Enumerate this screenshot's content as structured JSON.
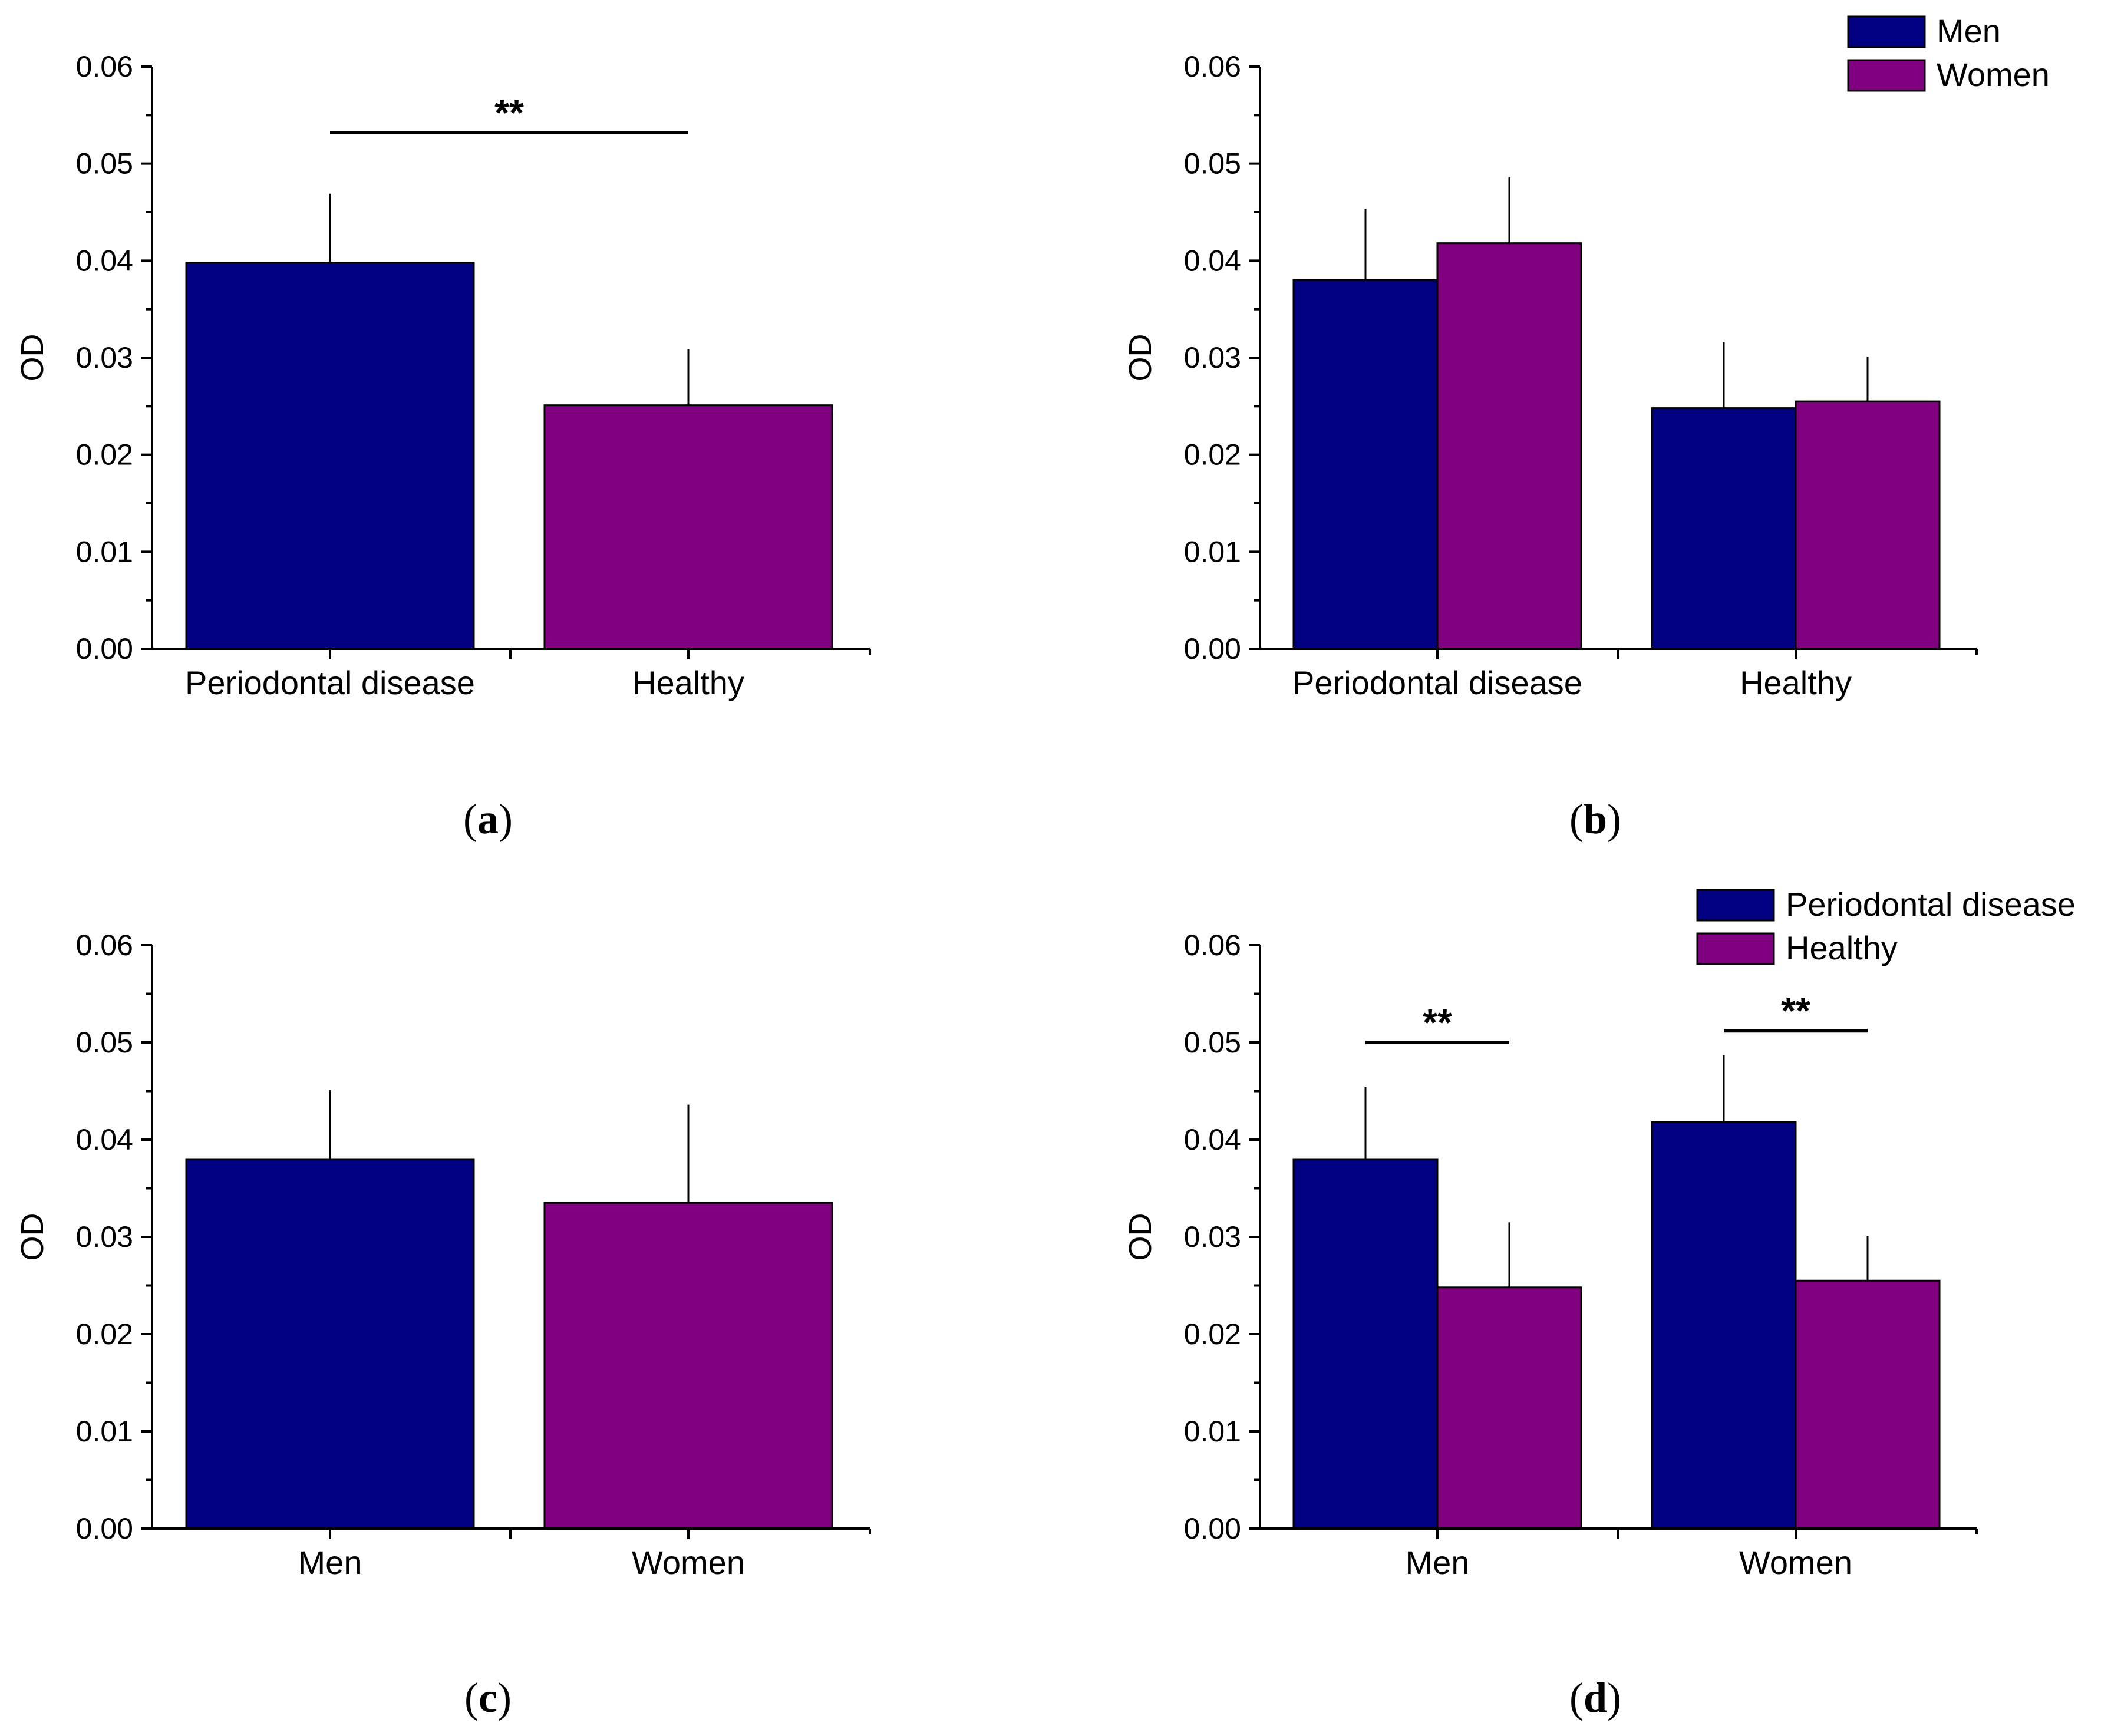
{
  "colors": {
    "men": "#000080",
    "women": "#800080",
    "periodontal": "#000080",
    "healthy": "#800080",
    "axis": "#000000"
  },
  "chart_data": [
    {
      "id": "a",
      "type": "bar",
      "panel_label": "a",
      "ylabel": "OD",
      "ylim": [
        0,
        0.06
      ],
      "yticks": [
        "0.00",
        "0.01",
        "0.02",
        "0.03",
        "0.04",
        "0.05",
        "0.06"
      ],
      "categories": [
        "Periodontal disease",
        "Healthy"
      ],
      "series": [
        {
          "name": "",
          "values": [
            0.0398,
            0.0251
          ],
          "errors": [
            0.0071,
            0.0058
          ],
          "colors": [
            "#000080",
            "#800080"
          ]
        }
      ],
      "legend": [],
      "significance": [
        {
          "label": "**",
          "between": [
            0,
            1
          ],
          "y": 0.0532
        }
      ]
    },
    {
      "id": "b",
      "type": "bar",
      "panel_label": "b",
      "ylabel": "OD",
      "ylim": [
        0,
        0.06
      ],
      "yticks": [
        "0.00",
        "0.01",
        "0.02",
        "0.03",
        "0.04",
        "0.05",
        "0.06"
      ],
      "categories": [
        "Periodontal disease",
        "Healthy"
      ],
      "series": [
        {
          "name": "Men",
          "values": [
            0.038,
            0.0248
          ],
          "errors": [
            0.0073,
            0.0068
          ],
          "color": "#000080"
        },
        {
          "name": "Women",
          "values": [
            0.0418,
            0.0255
          ],
          "errors": [
            0.0068,
            0.0046
          ],
          "color": "#800080"
        }
      ],
      "legend": [
        "Men",
        "Women"
      ],
      "significance": []
    },
    {
      "id": "c",
      "type": "bar",
      "panel_label": "c",
      "ylabel": "OD",
      "ylim": [
        0,
        0.06
      ],
      "yticks": [
        "0.00",
        "0.01",
        "0.02",
        "0.03",
        "0.04",
        "0.05",
        "0.06"
      ],
      "categories": [
        "Men",
        "Women"
      ],
      "series": [
        {
          "name": "",
          "values": [
            0.038,
            0.0335
          ],
          "errors": [
            0.0071,
            0.0101
          ],
          "colors": [
            "#000080",
            "#800080"
          ]
        }
      ],
      "legend": [],
      "significance": []
    },
    {
      "id": "d",
      "type": "bar",
      "panel_label": "d",
      "ylabel": "OD",
      "ylim": [
        0,
        0.06
      ],
      "yticks": [
        "0.00",
        "0.01",
        "0.02",
        "0.03",
        "0.04",
        "0.05",
        "0.06"
      ],
      "categories": [
        "Men",
        "Women"
      ],
      "series": [
        {
          "name": "Periodontal disease",
          "values": [
            0.038,
            0.0418
          ],
          "errors": [
            0.0074,
            0.0069
          ],
          "color": "#000080"
        },
        {
          "name": "Healthy",
          "values": [
            0.0248,
            0.0255
          ],
          "errors": [
            0.0067,
            0.0046
          ],
          "color": "#800080"
        }
      ],
      "legend": [
        "Periodontal disease",
        "Healthy"
      ],
      "significance": [
        {
          "label": "**",
          "group": 0,
          "y": 0.05
        },
        {
          "label": "**",
          "group": 1,
          "y": 0.0512
        }
      ]
    }
  ]
}
